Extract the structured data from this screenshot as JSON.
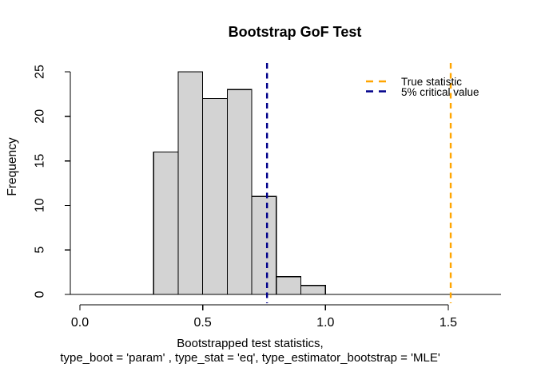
{
  "chart": {
    "title": "Bootstrap GoF Test",
    "ylabel": "Frequency",
    "xlabel_line1": "Bootstrapped test statistics,",
    "xlabel_line2": "type_boot = 'param' , type_stat = 'eq', type_estimator_bootstrap = 'MLE'"
  },
  "chart_data": {
    "type": "bar",
    "subtype": "histogram",
    "title": "Bootstrap GoF Test",
    "xlabel": "Bootstrapped test statistics, type_boot = 'param' , type_stat = 'eq', type_estimator_bootstrap = 'MLE'",
    "ylabel": "Frequency",
    "bin_edges": [
      0.3,
      0.4,
      0.5,
      0.6,
      0.7,
      0.8,
      0.9,
      1.0
    ],
    "counts": [
      16,
      25,
      22,
      23,
      11,
      2,
      1
    ],
    "xlim": [
      0.0,
      1.7
    ],
    "ylim": [
      0,
      25
    ],
    "xticks": [
      0.0,
      0.5,
      1.0,
      1.5
    ],
    "xtick_labels": [
      "0.0",
      "0.5",
      "1.0",
      "1.5"
    ],
    "yticks": [
      0,
      5,
      10,
      15,
      20,
      25
    ],
    "ytick_labels": [
      "0",
      "5",
      "10",
      "15",
      "20",
      "25"
    ],
    "grid": false,
    "bar_fill": "#D3D3D3",
    "bar_stroke": "#000000",
    "baseline_y": 0,
    "vlines": [
      {
        "name": "true-statistic",
        "x": 1.51,
        "color": "#FFA500",
        "style": "dashed"
      },
      {
        "name": "critical-value-5pct",
        "x": 0.762,
        "color": "#00008B",
        "style": "dashed"
      }
    ],
    "legend_position": "top-right",
    "legend": [
      {
        "label": "True statistic",
        "color": "#FFA500",
        "style": "dashed"
      },
      {
        "label": "5% critical value",
        "color": "#00008B",
        "style": "dashed"
      }
    ]
  }
}
